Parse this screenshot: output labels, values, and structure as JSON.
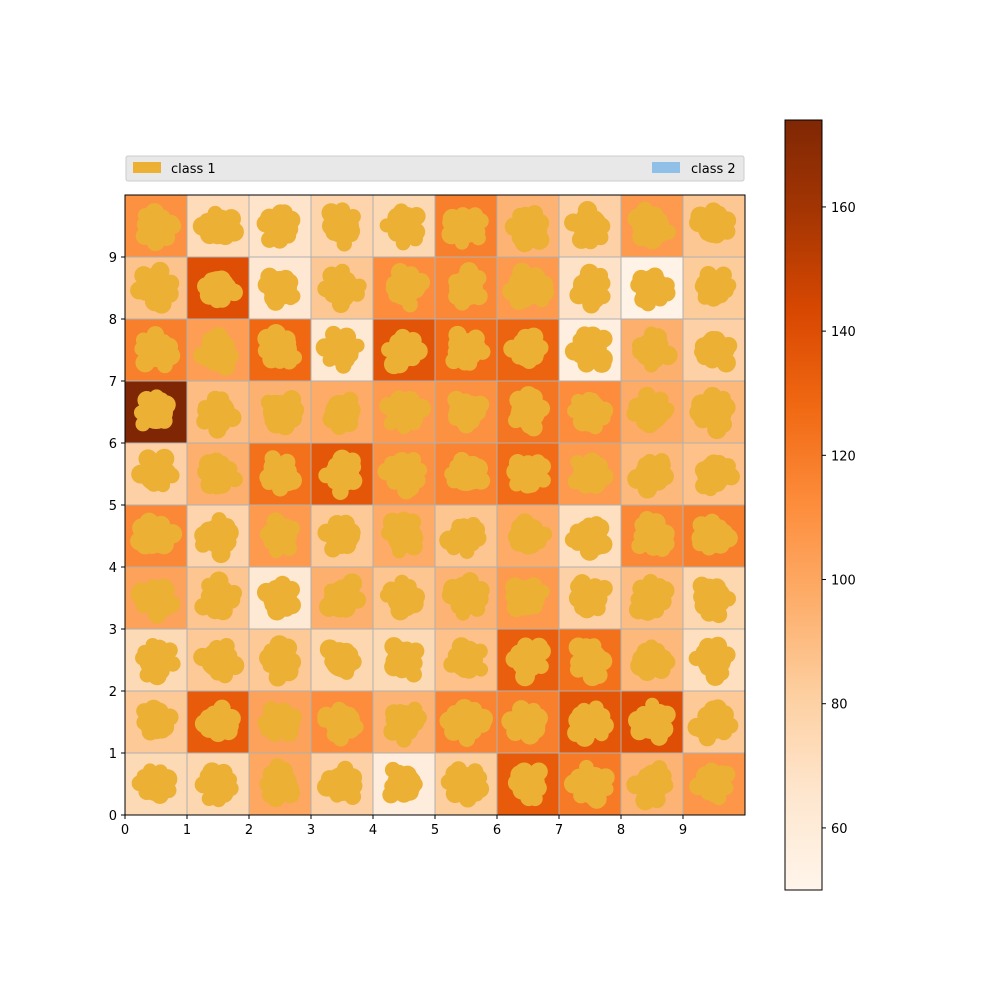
{
  "chart_data": {
    "type": "heatmap",
    "title": "",
    "xlabel": "",
    "ylabel": "",
    "x_ticks": [
      "0",
      "1",
      "2",
      "3",
      "4",
      "5",
      "6",
      "7",
      "8",
      "9"
    ],
    "y_ticks": [
      "0",
      "1",
      "2",
      "3",
      "4",
      "5",
      "6",
      "7",
      "8",
      "9"
    ],
    "xlim": [
      0,
      10
    ],
    "ylim": [
      0,
      10
    ],
    "grid": true,
    "colormap": "Oranges",
    "color_range": [
      50,
      174
    ],
    "colorbar_ticks": [
      "60",
      "80",
      "100",
      "120",
      "140",
      "160"
    ],
    "colorbar_tick_values": [
      60,
      80,
      100,
      120,
      140,
      160
    ],
    "rows_top_to_bottom": [
      [
        110,
        73,
        67,
        78,
        75,
        118,
        94,
        80,
        106,
        85
      ],
      [
        87,
        140,
        63,
        85,
        112,
        114,
        106,
        68,
        52,
        83
      ],
      [
        118,
        104,
        128,
        62,
        137,
        126,
        130,
        56,
        96,
        80
      ],
      [
        174,
        90,
        95,
        98,
        106,
        110,
        122,
        112,
        98,
        92
      ],
      [
        80,
        96,
        124,
        136,
        110,
        116,
        126,
        106,
        92,
        88
      ],
      [
        114,
        78,
        106,
        84,
        98,
        86,
        98,
        70,
        114,
        118
      ],
      [
        102,
        86,
        62,
        96,
        86,
        94,
        106,
        80,
        90,
        76
      ],
      [
        74,
        84,
        84,
        76,
        74,
        88,
        132,
        124,
        92,
        70
      ],
      [
        84,
        134,
        102,
        112,
        94,
        116,
        118,
        136,
        140,
        84
      ],
      [
        74,
        76,
        100,
        80,
        58,
        82,
        134,
        120,
        94,
        108
      ]
    ],
    "blob_color": "#ecb034",
    "legend": [
      {
        "label": "class 1",
        "color": "#ecb034"
      },
      {
        "label": "class 2",
        "color": "#90c0e8"
      }
    ],
    "legend_placement": "top"
  }
}
